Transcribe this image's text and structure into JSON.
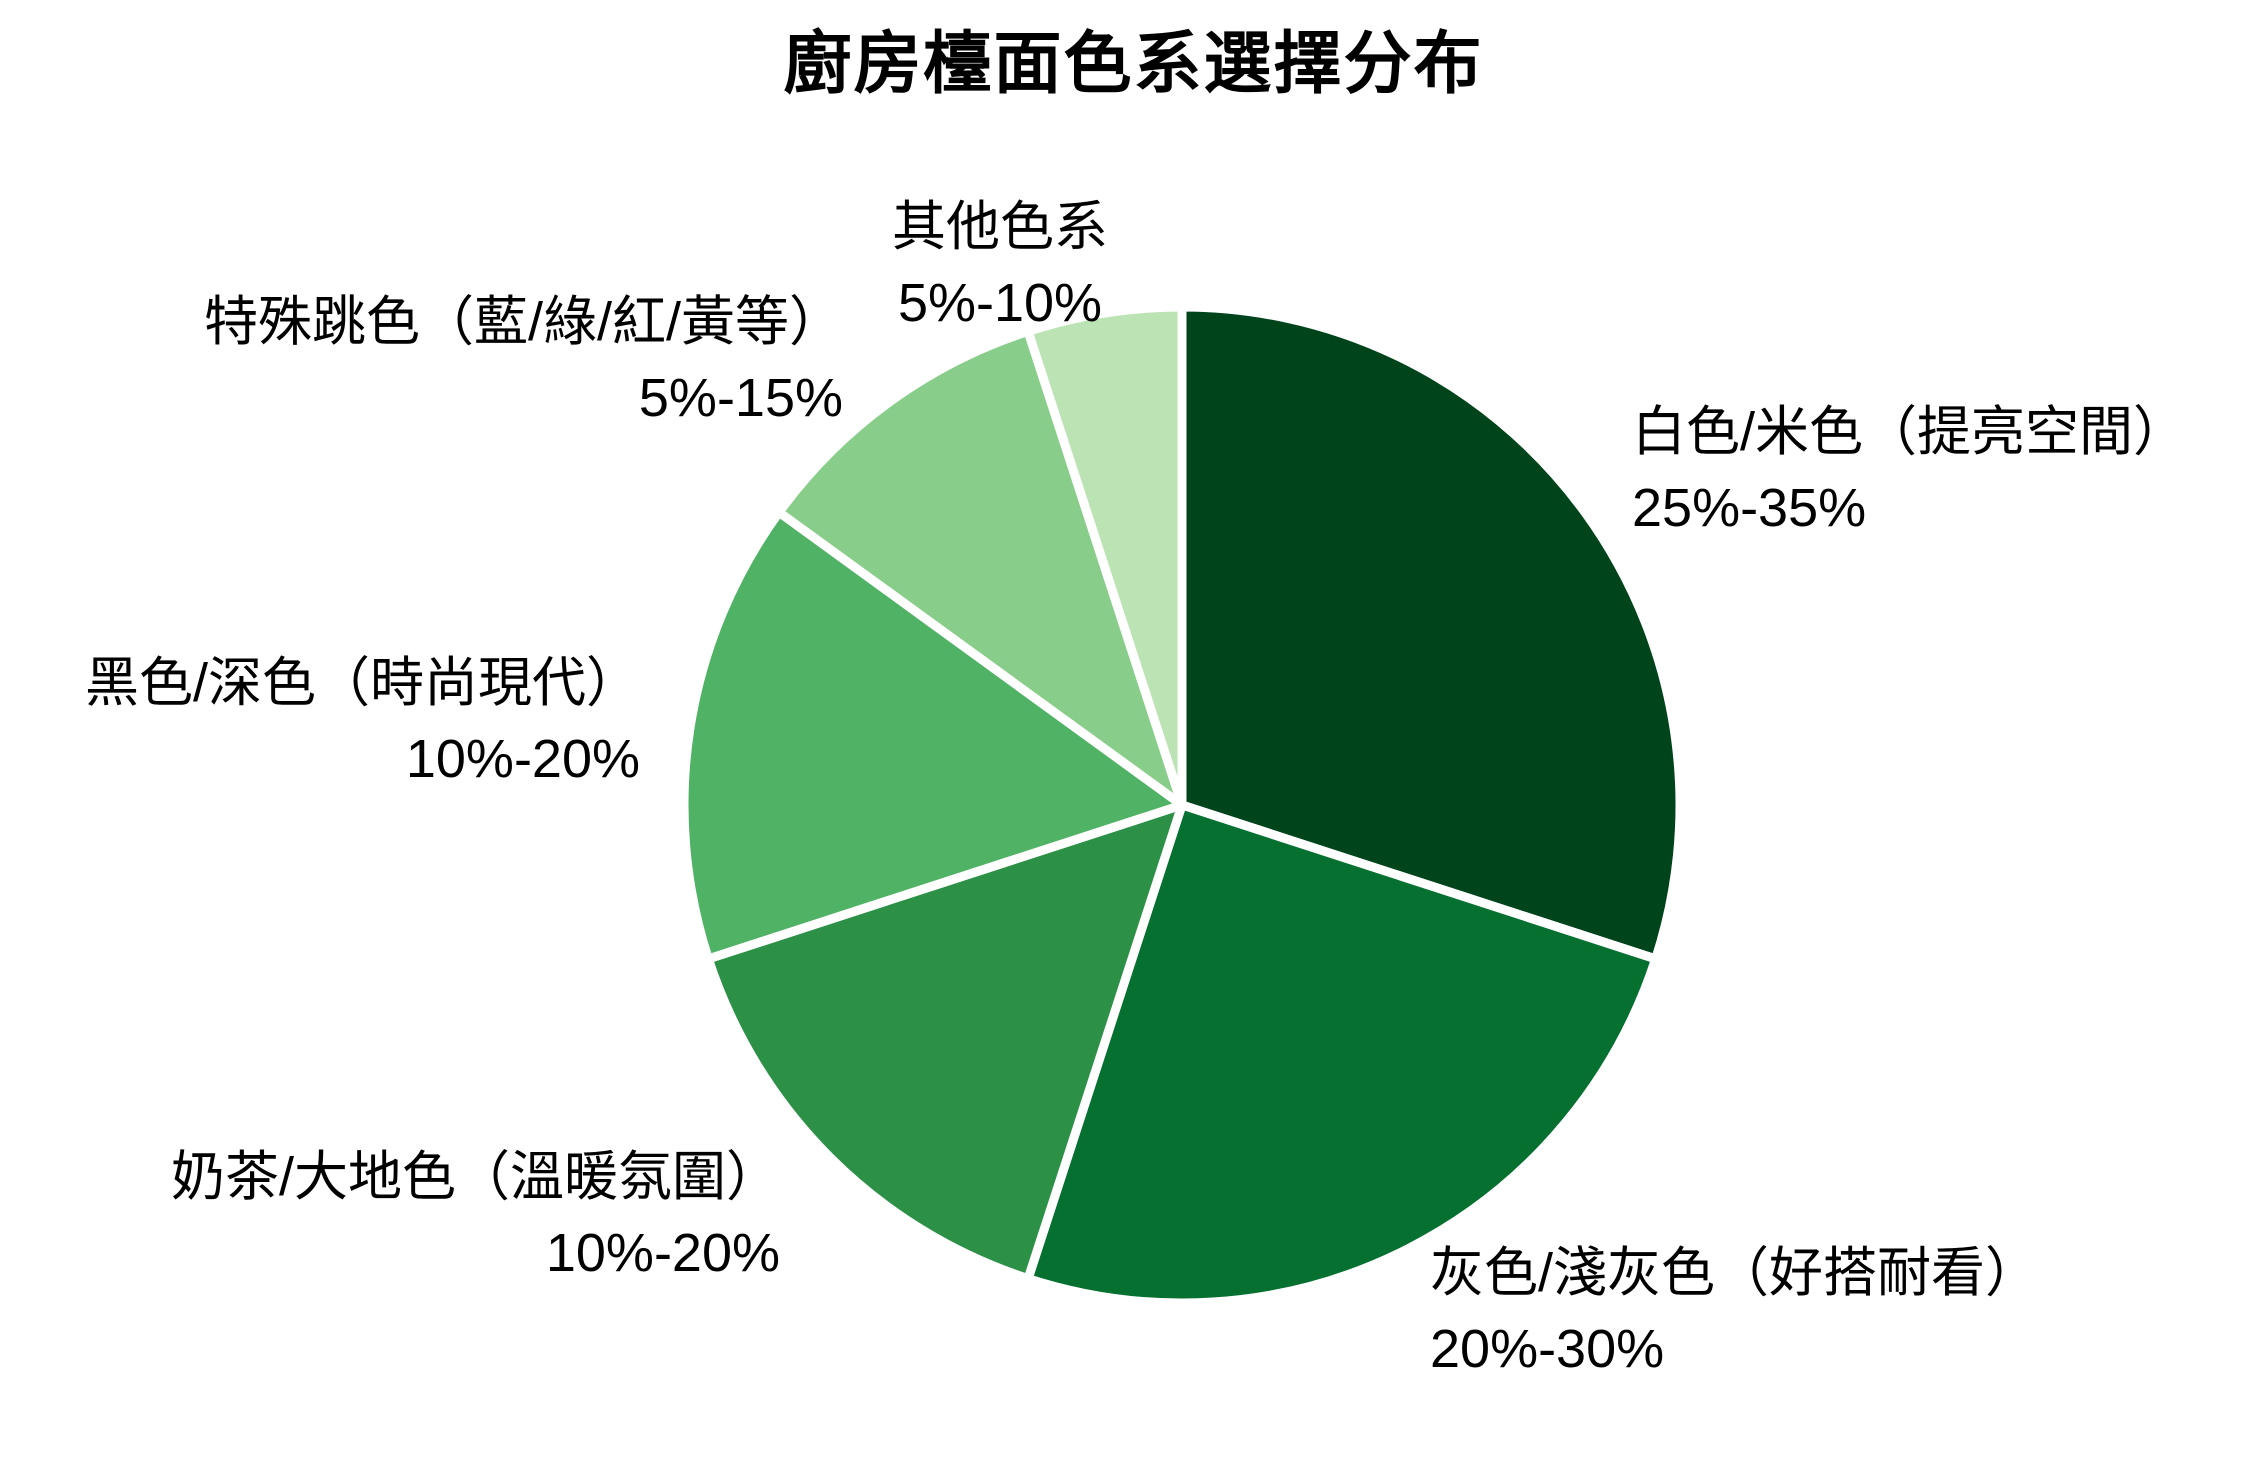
{
  "chart_data": {
    "type": "pie",
    "title": "廚房檯面色系選擇分布",
    "start_angle_deg": 0,
    "direction": "clockwise",
    "legend_position": "none",
    "separator_color": "#ffffff",
    "background_color": "#ffffff",
    "text_color": "#000000",
    "slices": [
      {
        "label": "白色/米色（提亮空間）",
        "range": "25%-35%",
        "value": 30,
        "color": "#00441b"
      },
      {
        "label": "灰色/淺灰色（好搭耐看）",
        "range": "20%-30%",
        "value": 25,
        "color": "#057030"
      },
      {
        "label": "奶茶/大地色（溫暖氛圍）",
        "range": "10%-20%",
        "value": 15,
        "color": "#2c9147"
      },
      {
        "label": "黑色/深色（時尚現代）",
        "range": "10%-20%",
        "value": 15,
        "color": "#4fb264"
      },
      {
        "label": "特殊跳色（藍/綠/紅/黃等）",
        "range": "5%-15%",
        "value": 10,
        "color": "#88ce8a"
      },
      {
        "label": "其他色系",
        "range": "5%-10%",
        "value": 5,
        "color": "#bce3b4"
      }
    ]
  }
}
